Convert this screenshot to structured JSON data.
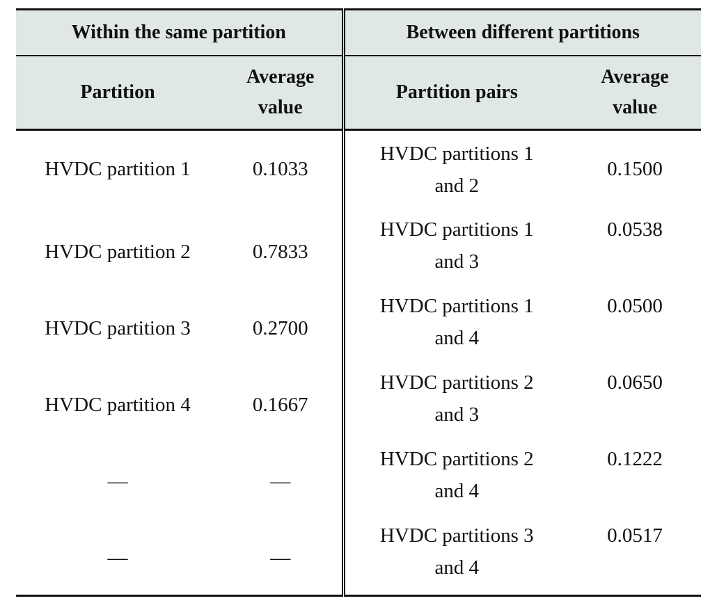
{
  "header": {
    "group_left": "Within the same partition",
    "group_right": "Between different partitions",
    "col_partition": "Partition",
    "col_avg_left_line1": "Average",
    "col_avg_left_line2": "value",
    "col_partition_pairs": "Partition pairs",
    "col_avg_right_line1": "Average",
    "col_avg_right_line2": "value"
  },
  "rows": [
    {
      "partition": "HVDC partition 1",
      "value": "0.1033",
      "pair_line1": "HVDC partitions 1",
      "pair_line2": "and 2",
      "pair_value": "0.1500"
    },
    {
      "partition": "HVDC partition 2",
      "value": "0.7833",
      "pair_line1": "HVDC partitions 1",
      "pair_line2": "and 3",
      "pair_value": "0.0538"
    },
    {
      "partition": "HVDC partition 3",
      "value": "0.2700",
      "pair_line1": "HVDC partitions 1",
      "pair_line2": "and 4",
      "pair_value": "0.0500"
    },
    {
      "partition": "HVDC partition 4",
      "value": "0.1667",
      "pair_line1": "HVDC partitions 2",
      "pair_line2": "and 3",
      "pair_value": "0.0650"
    },
    {
      "partition": "—",
      "value": "—",
      "pair_line1": "HVDC partitions 2",
      "pair_line2": "and 4",
      "pair_value": "0.1222"
    },
    {
      "partition": "—",
      "value": "—",
      "pair_line1": "HVDC partitions 3",
      "pair_line2": "and 4",
      "pair_value": "0.0517"
    }
  ]
}
